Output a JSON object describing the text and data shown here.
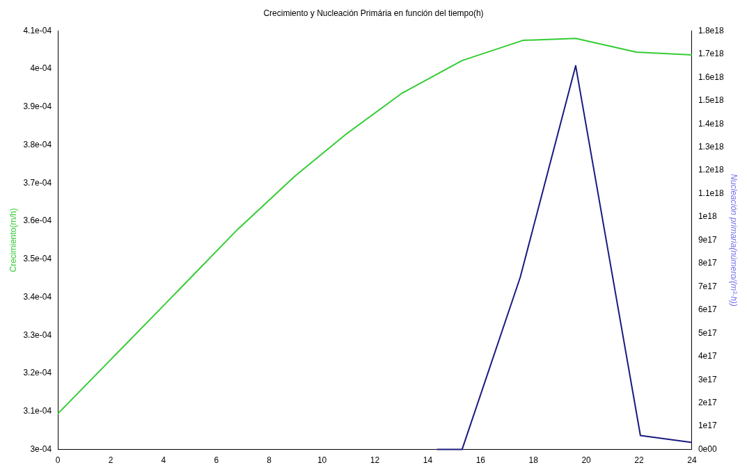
{
  "chart_data": {
    "type": "line",
    "title": "Crecimiento y Nucleación Primária en función del tiempo(h)",
    "ylabel": "Crecimiento(m/h)",
    "y2label": "Nucleación primaria(número/(m³·h))",
    "xlim": [
      0,
      24
    ],
    "xticks": [
      0,
      2,
      4,
      6,
      8,
      10,
      12,
      14,
      16,
      18,
      20,
      22,
      24
    ],
    "ylim": [
      0.0003,
      0.00041
    ],
    "yticks": [
      {
        "value": 0.0003,
        "label": "3e-04"
      },
      {
        "value": 0.00031,
        "label": "3.1e-04"
      },
      {
        "value": 0.00032,
        "label": "3.2e-04"
      },
      {
        "value": 0.00033,
        "label": "3.3e-04"
      },
      {
        "value": 0.00034,
        "label": "3.4e-04"
      },
      {
        "value": 0.00035,
        "label": "3.5e-04"
      },
      {
        "value": 0.00036,
        "label": "3.6e-04"
      },
      {
        "value": 0.00037,
        "label": "3.7e-04"
      },
      {
        "value": 0.00038,
        "label": "3.8e-04"
      },
      {
        "value": 0.00039,
        "label": "3.9e-04"
      },
      {
        "value": 0.0004,
        "label": "4e-04"
      },
      {
        "value": 0.00041,
        "label": "4.1e-04"
      }
    ],
    "y2lim": [
      0,
      1.8e+18
    ],
    "y2ticks": [
      {
        "value": 0,
        "label": "0e00"
      },
      {
        "value": 1e+17,
        "label": "1e17"
      },
      {
        "value": 2e+17,
        "label": "2e17"
      },
      {
        "value": 3e+17,
        "label": "3e17"
      },
      {
        "value": 4e+17,
        "label": "4e17"
      },
      {
        "value": 5e+17,
        "label": "5e17"
      },
      {
        "value": 6e+17,
        "label": "6e17"
      },
      {
        "value": 7e+17,
        "label": "7e17"
      },
      {
        "value": 8e+17,
        "label": "8e17"
      },
      {
        "value": 9e+17,
        "label": "9e17"
      },
      {
        "value": 1e+18,
        "label": "1e18"
      },
      {
        "value": 1.1e+18,
        "label": "1.1e18"
      },
      {
        "value": 1.2e+18,
        "label": "1.2e18"
      },
      {
        "value": 1.3e+18,
        "label": "1.3e18"
      },
      {
        "value": 1.4e+18,
        "label": "1.4e18"
      },
      {
        "value": 1.5e+18,
        "label": "1.5e18"
      },
      {
        "value": 1.6e+18,
        "label": "1.6e18"
      },
      {
        "value": 1.7e+18,
        "label": "1.7e18"
      },
      {
        "value": 1.8e+18,
        "label": "1.8e18"
      }
    ],
    "grid": false,
    "legend": false,
    "marker": "none",
    "line_style": "solid",
    "series": [
      {
        "color": "#33cc33",
        "x": [
          0,
          2,
          4,
          6.8,
          9,
          10.9,
          13,
          15.3,
          17.6,
          19.6,
          21.9,
          24
        ],
        "values": [
          0.0003094,
          0.0003236,
          0.0003378,
          0.0003578,
          0.000372,
          0.0003828,
          0.0003935,
          0.0004022,
          0.0004075,
          0.000408,
          0.0004044,
          0.0004037
        ]
      },
      {
        "color": "#1a1a80",
        "axis": "y2",
        "x": [
          14.35,
          15.3,
          17.5,
          19.6,
          22.05,
          24
        ],
        "values": [
          0,
          0,
          7.4e+17,
          1.65e+18,
          6e+16,
          3e+16
        ]
      }
    ]
  }
}
